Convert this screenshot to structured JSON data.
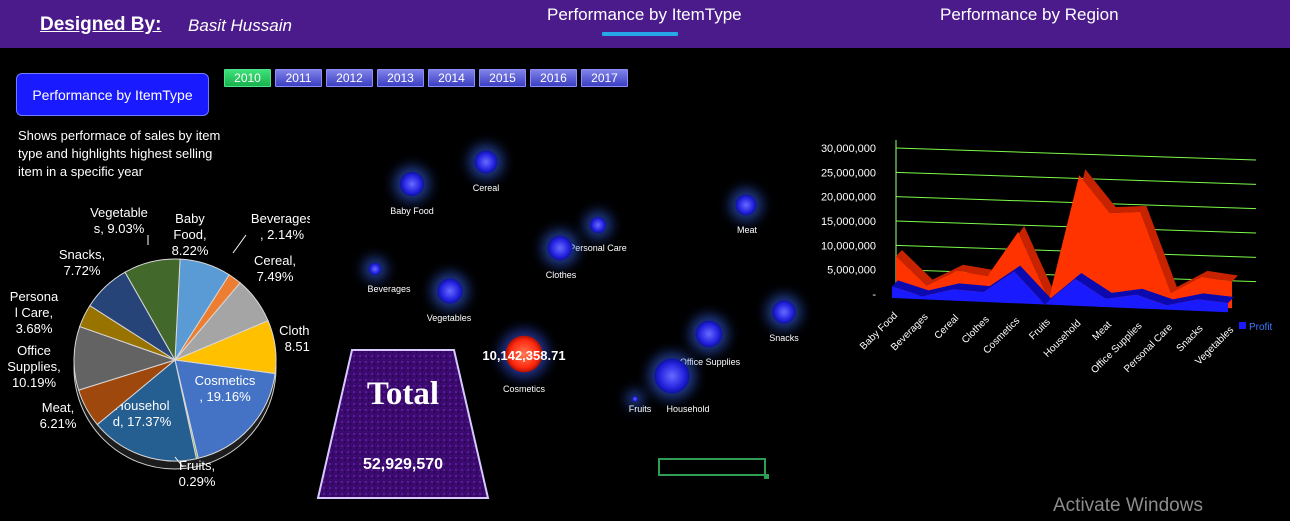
{
  "header": {
    "designed_label": "Designed By:",
    "designer_name": "Basit Hussain",
    "tabs": [
      {
        "label": "Performance by ItemType",
        "active": true
      },
      {
        "label": "Performance by Region",
        "active": false
      }
    ],
    "bg_color": "#4b1b8c",
    "accent": "#27a6ea"
  },
  "sidebar": {
    "card_title": "Performance by ItemType",
    "description": "Shows performace of sales by item type and highlights highest selling item in a specific year"
  },
  "years": {
    "items": [
      "2010",
      "2011",
      "2012",
      "2013",
      "2014",
      "2015",
      "2016",
      "2017"
    ],
    "selected": "2010"
  },
  "total": {
    "label": "Total",
    "value": "52,929,570"
  },
  "watermark": "Activate Windows",
  "chart_data": [
    {
      "type": "pie",
      "slices": [
        {
          "label": "Baby Food",
          "text_lines": [
            "Baby",
            "Food,",
            "8.22%"
          ],
          "value": 8.22,
          "color": "#5b9bd5"
        },
        {
          "label": "Beverages",
          "text_lines": [
            "Beverages",
            ", 2.14%"
          ],
          "value": 2.14,
          "color": "#ed7d31"
        },
        {
          "label": "Cereal",
          "text_lines": [
            "Cereal,",
            "7.49%"
          ],
          "value": 7.49,
          "color": "#a5a5a5"
        },
        {
          "label": "Clothes",
          "text_lines": [
            "Clothes,",
            "8.51%"
          ],
          "value": 8.51,
          "color": "#ffc000"
        },
        {
          "label": "Cosmetics",
          "text_lines": [
            "Cosmetics",
            ", 19.16%"
          ],
          "value": 19.16,
          "color": "#4472c4"
        },
        {
          "label": "Fruits",
          "text_lines": [
            "Fruits,",
            "0.29%"
          ],
          "value": 0.29,
          "color": "#70ad47"
        },
        {
          "label": "Household",
          "text_lines": [
            "Househol",
            "d, 17.37%"
          ],
          "value": 17.37,
          "color": "#255e91"
        },
        {
          "label": "Meat",
          "text_lines": [
            "Meat,",
            "6.21%"
          ],
          "value": 6.21,
          "color": "#9e480e"
        },
        {
          "label": "Office Supplies",
          "text_lines": [
            "Office",
            "Supplies,",
            "10.19%"
          ],
          "value": 10.19,
          "color": "#636363"
        },
        {
          "label": "Personal Care",
          "text_lines": [
            "Persona",
            "l Care,",
            "3.68%"
          ],
          "value": 3.68,
          "color": "#997300"
        },
        {
          "label": "Snacks",
          "text_lines": [
            "Snacks,",
            "7.72%"
          ],
          "value": 7.72,
          "color": "#264478"
        },
        {
          "label": "Vegetables",
          "text_lines": [
            "Vegetable",
            "s, 9.03%"
          ],
          "value": 9.03,
          "color": "#43682b"
        }
      ]
    },
    {
      "type": "scatter",
      "highlight_value": "10,142,358.71",
      "points": [
        {
          "label": "Baby Food",
          "size": 8.22,
          "highlight": false
        },
        {
          "label": "Cereal",
          "size": 7.49,
          "highlight": false
        },
        {
          "label": "Personal Care",
          "size": 3.68,
          "highlight": false
        },
        {
          "label": "Clothes",
          "size": 8.51,
          "highlight": false
        },
        {
          "label": "Meat",
          "size": 6.21,
          "highlight": false
        },
        {
          "label": "Beverages",
          "size": 2.14,
          "highlight": false
        },
        {
          "label": "Vegetables",
          "size": 9.03,
          "highlight": false
        },
        {
          "label": "Cosmetics",
          "size": 19.16,
          "highlight": true
        },
        {
          "label": "Office Supplies",
          "size": 10.19,
          "highlight": false
        },
        {
          "label": "Snacks",
          "size": 7.72,
          "highlight": false
        },
        {
          "label": "Fruits",
          "size": 0.29,
          "highlight": false
        },
        {
          "label": "Household",
          "size": 17.37,
          "highlight": false
        }
      ],
      "colors": {
        "bubble": "#2a2ae6",
        "highlight": "#ff3b1f",
        "glow": "#3a6cff"
      }
    },
    {
      "type": "area",
      "categories": [
        "Baby Food",
        "Beverages",
        "Cereal",
        "Clothes",
        "Cosmetics",
        "Fruits",
        "Household",
        "Meat",
        "Office Supplies",
        "Personal Care",
        "Snacks",
        "Vegetables"
      ],
      "series": [
        {
          "name": "",
          "values": [
            7800000,
            2000000,
            5300000,
            4500000,
            13800000,
            200000,
            26000000,
            18500000,
            19000000,
            2600000,
            6200000,
            5500000
          ],
          "color": "#ff3300"
        },
        {
          "name": "Profit",
          "values": [
            2400000,
            600000,
            2300000,
            2000000,
            6500000,
            60000,
            5500000,
            1700000,
            2800000,
            900000,
            2400000,
            1900000
          ],
          "color": "#1a1aff"
        }
      ],
      "y_ticks": [
        "-",
        "5,000,000",
        "10,000,000",
        "15,000,000",
        "20,000,000",
        "25,000,000",
        "30,000,000"
      ],
      "ylim": [
        0,
        30000000
      ],
      "grid_color": "#7cfc4a",
      "legend": "right"
    }
  ]
}
